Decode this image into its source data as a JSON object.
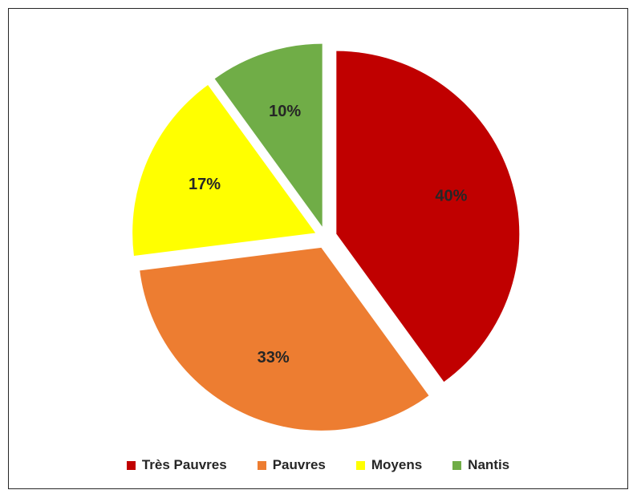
{
  "chart_data": {
    "type": "pie",
    "title": "",
    "categories": [
      "Très Pauvres",
      "Pauvres",
      "Moyens",
      "Nantis"
    ],
    "values": [
      40,
      33,
      17,
      10
    ],
    "labels": [
      "40%",
      "33%",
      "17%",
      "10%"
    ],
    "colors": [
      "#C00000",
      "#ED7D31",
      "#FFFF00",
      "#70AD47"
    ],
    "exploded": true,
    "legend_position": "bottom"
  }
}
